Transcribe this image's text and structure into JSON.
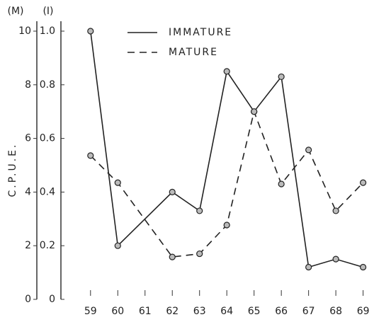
{
  "chart_data": {
    "type": "line",
    "y_label": "C.P.U.E.",
    "y_unit_label": "(M)",
    "y2_unit_label": "(I)",
    "x": [
      59,
      60,
      62,
      63,
      64,
      65,
      66,
      67,
      68,
      69
    ],
    "xlim": [
      58.2,
      69.4
    ],
    "xticks": [
      59,
      60,
      61,
      62,
      63,
      64,
      65,
      66,
      67,
      68,
      69
    ],
    "ylim": [
      0,
      10
    ],
    "yticks": [
      0,
      2,
      4,
      6,
      8,
      10
    ],
    "y2lim": [
      0,
      1
    ],
    "y2ticks": [
      0,
      0.2,
      0.4,
      0.6,
      0.8,
      {
        "value": 1,
        "label": "1.0"
      }
    ],
    "legend_position": "top",
    "series": [
      {
        "name": "IMMATURE",
        "color": "#222222",
        "dash": "solid",
        "axis": "y2",
        "values": [
          1.0,
          0.2,
          0.4,
          0.33,
          0.85,
          0.7,
          0.83,
          0.12,
          0.15,
          0.12
        ]
      },
      {
        "name": "MATURE",
        "color": "#222222",
        "dash": "dashed",
        "axis": "y",
        "values": [
          5.36,
          4.35,
          1.58,
          1.7,
          2.77,
          7.0,
          4.3,
          5.57,
          3.3,
          4.35
        ]
      }
    ]
  }
}
